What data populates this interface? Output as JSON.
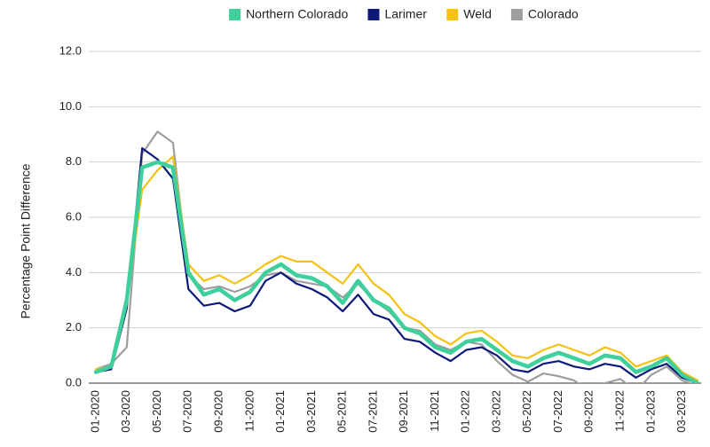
{
  "chart_data": {
    "type": "line",
    "y_label": "Percentage Point Difference",
    "categories": [
      "01-2020",
      null,
      "03-2020",
      null,
      "05-2020",
      null,
      "07-2020",
      null,
      "09-2020",
      null,
      "11-2020",
      null,
      "01-2021",
      null,
      "03-2021",
      null,
      "05-2021",
      null,
      "07-2021",
      null,
      "09-2021",
      null,
      "11-2021",
      null,
      "01-2022",
      null,
      "03-2022",
      null,
      "05-2022",
      null,
      "07-2022",
      null,
      "09-2022",
      null,
      "11-2022",
      null,
      "01-2023",
      null,
      "03-2023",
      null
    ],
    "series": [
      {
        "name": "Northern Colorado",
        "color": "#3ecf9a",
        "values": [
          0.4,
          0.6,
          3.0,
          7.8,
          8.0,
          7.8,
          4.0,
          3.2,
          3.4,
          3.0,
          3.3,
          4.0,
          4.3,
          3.9,
          3.8,
          3.5,
          2.9,
          3.7,
          3.0,
          2.7,
          2.0,
          1.8,
          1.3,
          1.1,
          1.5,
          1.6,
          1.2,
          0.8,
          0.6,
          0.9,
          1.1,
          0.9,
          0.7,
          1.0,
          0.9,
          0.4,
          0.6,
          0.9,
          0.3,
          0.0
        ]
      },
      {
        "name": "Larimer",
        "color": "#0d1a7a",
        "values": [
          0.4,
          0.5,
          2.7,
          8.5,
          8.1,
          7.4,
          3.4,
          2.8,
          2.9,
          2.6,
          2.8,
          3.7,
          4.0,
          3.6,
          3.4,
          3.1,
          2.6,
          3.2,
          2.5,
          2.3,
          1.6,
          1.5,
          1.1,
          0.8,
          1.2,
          1.3,
          1.0,
          0.5,
          0.4,
          0.7,
          0.8,
          0.6,
          0.5,
          0.7,
          0.6,
          0.2,
          0.5,
          0.7,
          0.2,
          0.0
        ]
      },
      {
        "name": "Weld",
        "color": "#f5c211",
        "values": [
          0.5,
          0.6,
          2.9,
          7.0,
          7.7,
          8.2,
          4.3,
          3.7,
          3.9,
          3.6,
          3.9,
          4.3,
          4.6,
          4.4,
          4.4,
          4.0,
          3.6,
          4.3,
          3.6,
          3.2,
          2.5,
          2.2,
          1.7,
          1.4,
          1.8,
          1.9,
          1.5,
          1.0,
          0.9,
          1.2,
          1.4,
          1.2,
          1.0,
          1.3,
          1.1,
          0.6,
          0.8,
          1.0,
          0.4,
          0.1
        ]
      },
      {
        "name": "Colorado",
        "color": "#9e9e9e",
        "values": [
          0.5,
          0.7,
          1.3,
          8.3,
          9.1,
          8.7,
          3.9,
          3.4,
          3.5,
          3.3,
          3.5,
          3.9,
          4.0,
          3.7,
          3.6,
          3.5,
          3.1,
          3.6,
          3.0,
          2.6,
          2.0,
          1.9,
          1.4,
          1.2,
          1.5,
          1.4,
          0.8,
          0.3,
          0.05,
          0.35,
          0.25,
          0.1,
          -0.3,
          0.0,
          0.15,
          -0.3,
          0.3,
          0.6,
          0.1,
          -0.1
        ]
      }
    ],
    "ylim": [
      0,
      12
    ],
    "yticks": [
      {
        "value": 0,
        "label": "0.0"
      },
      {
        "value": 2,
        "label": "2.0"
      },
      {
        "value": 4,
        "label": "4.0"
      },
      {
        "value": 6,
        "label": "6.0"
      },
      {
        "value": 8,
        "label": "8.0"
      },
      {
        "value": 10,
        "label": "10.0"
      },
      {
        "value": 12,
        "label": "12.0"
      }
    ],
    "grid": true,
    "legend": "top"
  }
}
